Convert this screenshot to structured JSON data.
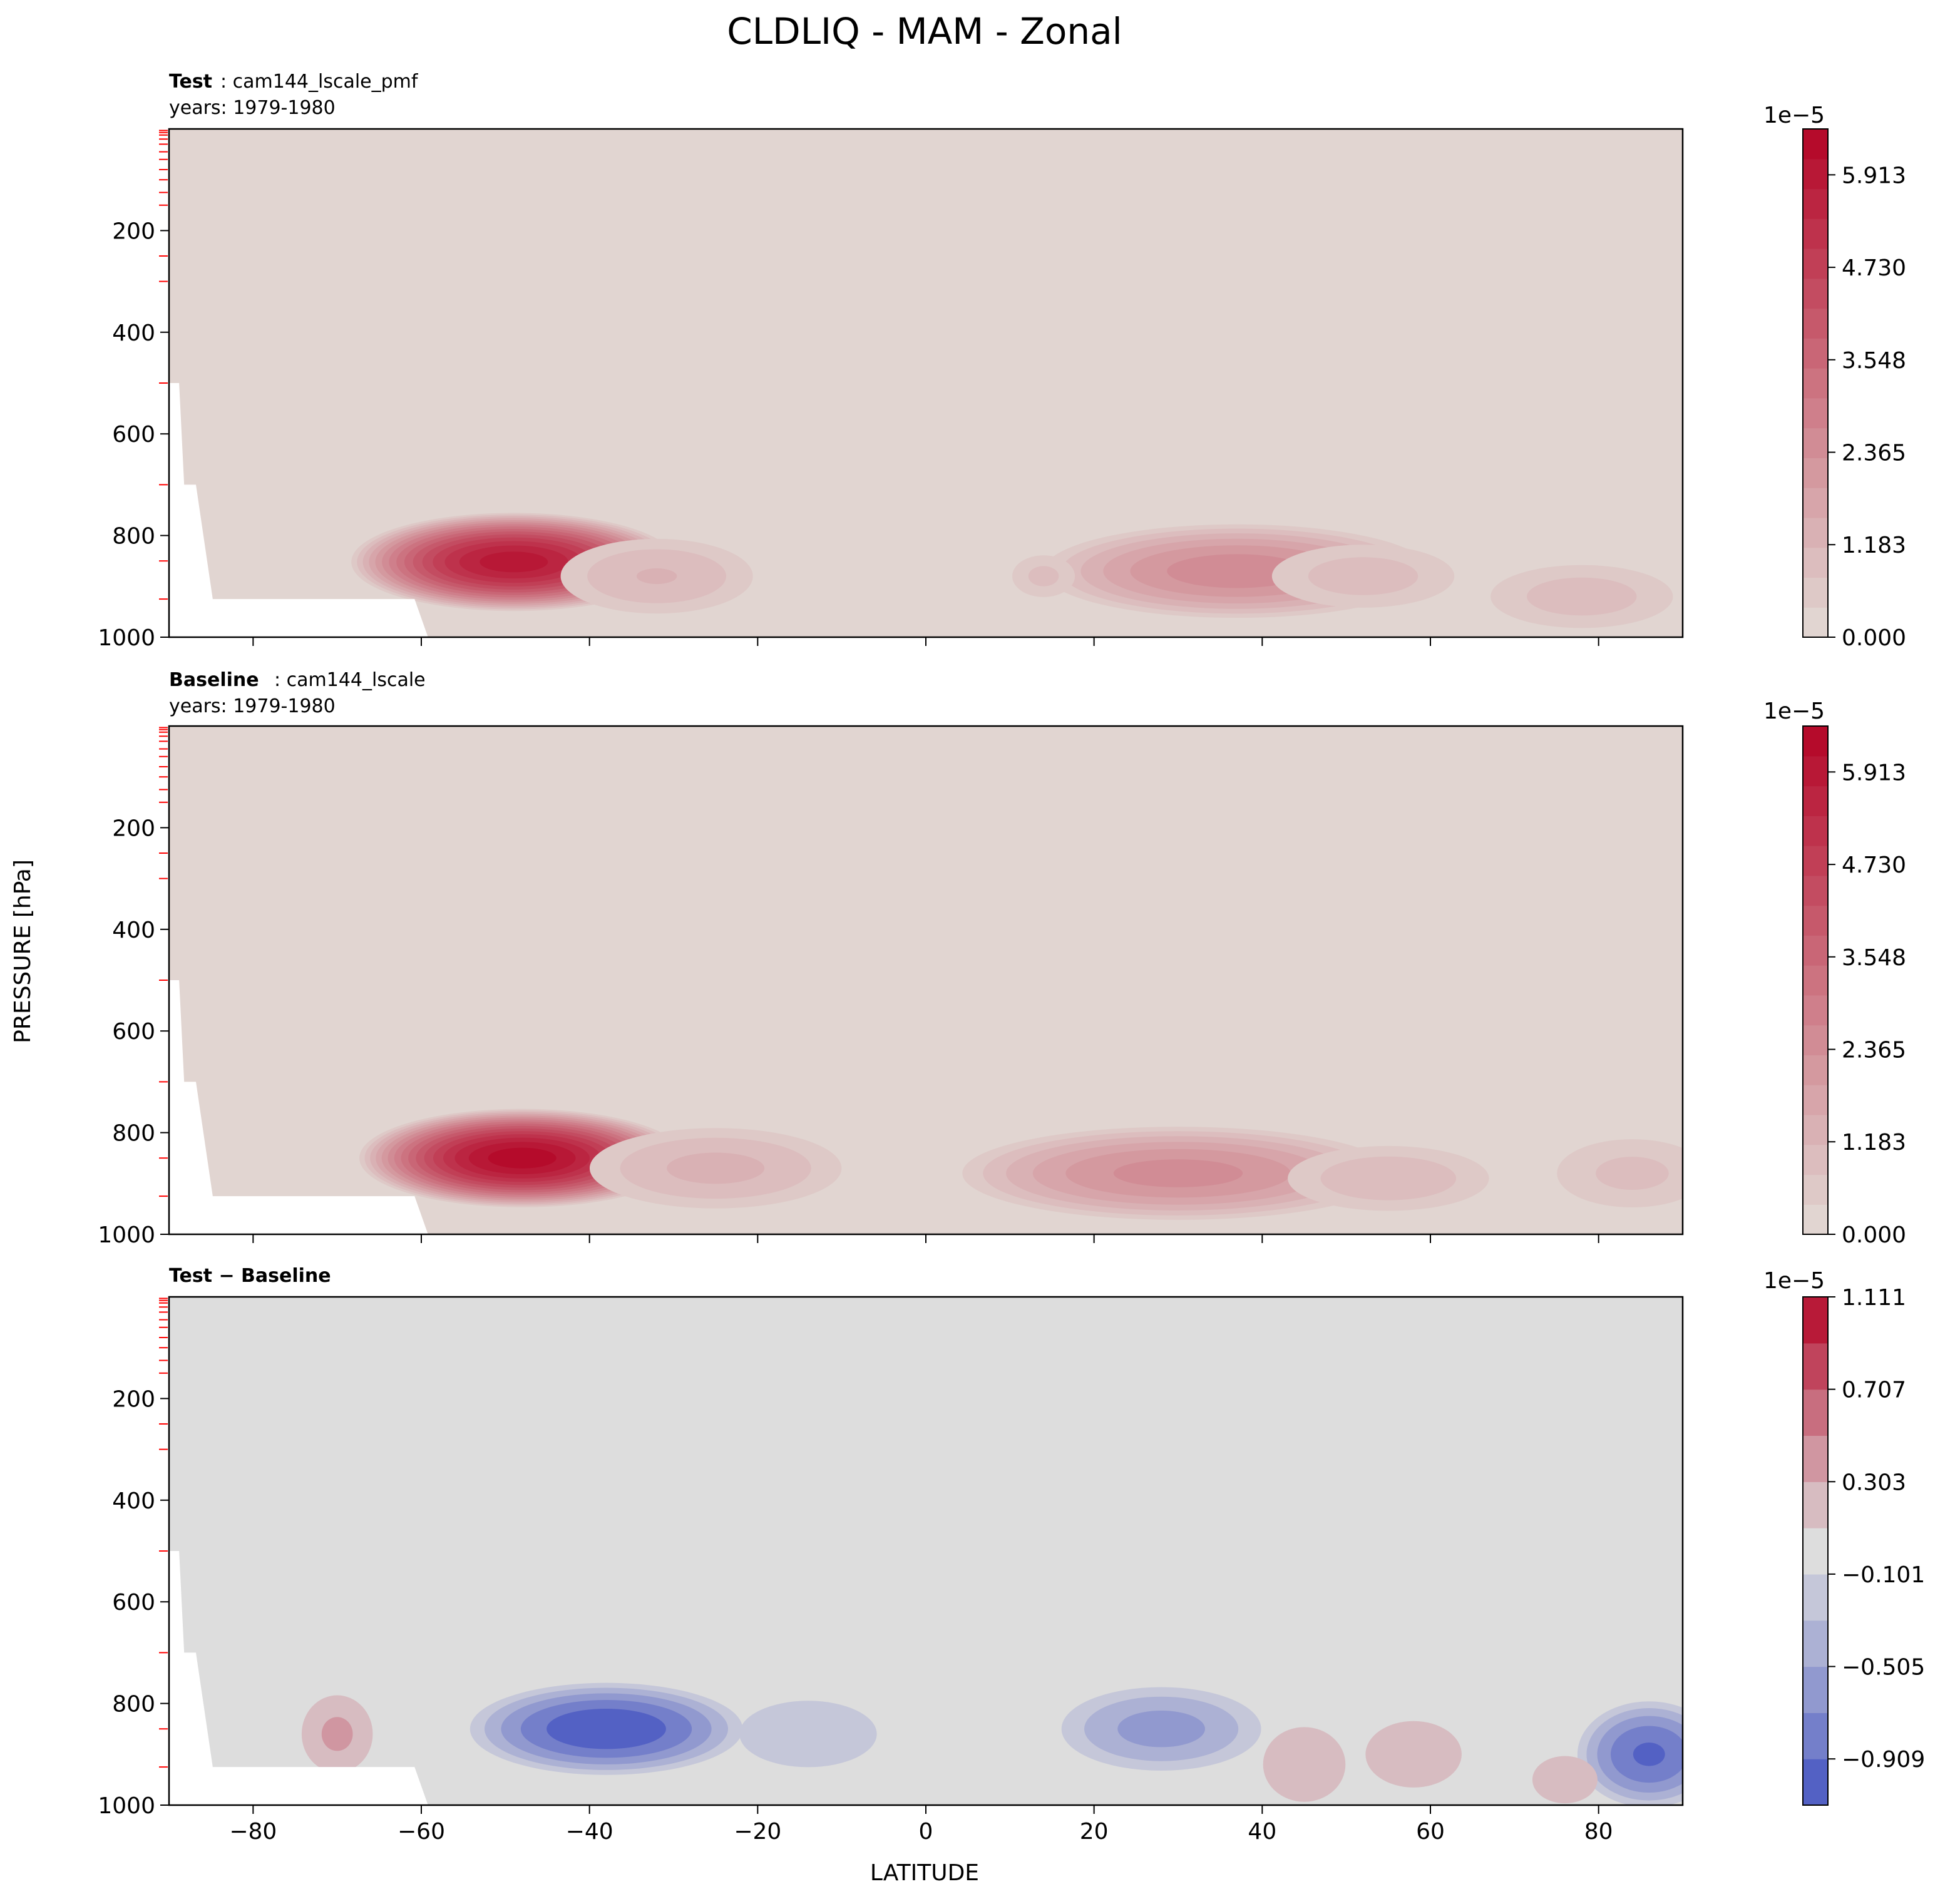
{
  "figure": {
    "title": "CLDLIQ - MAM - Zonal",
    "ylabel": "PRESSURE [hPa]",
    "xlabel": "LATITUDE"
  },
  "chart_data": [
    {
      "type": "heatmap",
      "panel_label": "Test",
      "case_name": ": cam144_lscale_pmf",
      "years": "years: 1979-1980",
      "x_ticks": [
        -80,
        -60,
        -40,
        -20,
        0,
        20,
        40,
        60,
        80
      ],
      "y_ticks": [
        200,
        400,
        600,
        800,
        1000
      ],
      "xlim": [
        -90,
        90
      ],
      "ylim": [
        1000,
        0
      ],
      "colorbar": {
        "exponent": "1e−5",
        "tick_labels": [
          "0.000",
          "1.183",
          "2.365",
          "3.548",
          "4.730",
          "5.913"
        ],
        "tick_values": [
          0.0,
          1.183,
          2.365,
          3.548,
          4.73,
          5.913
        ],
        "levels": 17,
        "range": [
          0,
          6.5
        ],
        "cmap": "coolwarm-upper-half"
      },
      "features": [
        {
          "lat_center": -49,
          "p_center": 852,
          "lat_halfwidth": 20,
          "p_halfheight": 100,
          "peak": 6.0
        },
        {
          "lat_center": -32,
          "p_center": 880,
          "lat_halfwidth": 14,
          "p_halfheight": 90,
          "peak": 1.2
        },
        {
          "lat_center": 37,
          "p_center": 870,
          "lat_halfwidth": 25,
          "p_halfheight": 100,
          "peak": 2.6
        },
        {
          "lat_center": 52,
          "p_center": 880,
          "lat_halfwidth": 14,
          "p_halfheight": 80,
          "peak": 1.0
        },
        {
          "lat_center": 78,
          "p_center": 920,
          "lat_halfwidth": 14,
          "p_halfheight": 80,
          "peak": 1.0
        },
        {
          "lat_center": 14,
          "p_center": 880,
          "lat_halfwidth": 5,
          "p_halfheight": 55,
          "peak": 0.9
        }
      ]
    },
    {
      "type": "heatmap",
      "panel_label": "Baseline",
      "case_name": ": cam144_lscale",
      "years": "years: 1979-1980",
      "x_ticks": [
        -80,
        -60,
        -40,
        -20,
        0,
        20,
        40,
        60,
        80
      ],
      "y_ticks": [
        200,
        400,
        600,
        800,
        1000
      ],
      "xlim": [
        -90,
        90
      ],
      "ylim": [
        1000,
        0
      ],
      "colorbar": {
        "exponent": "1e−5",
        "tick_labels": [
          "0.000",
          "1.183",
          "2.365",
          "3.548",
          "4.730",
          "5.913"
        ],
        "tick_values": [
          0.0,
          1.183,
          2.365,
          3.548,
          4.73,
          5.913
        ],
        "levels": 17,
        "range": [
          0,
          6.5
        ],
        "cmap": "coolwarm-upper-half"
      },
      "features": [
        {
          "lat_center": -48,
          "p_center": 850,
          "lat_halfwidth": 20,
          "p_halfheight": 100,
          "peak": 6.4
        },
        {
          "lat_center": -25,
          "p_center": 870,
          "lat_halfwidth": 18,
          "p_halfheight": 95,
          "peak": 1.3
        },
        {
          "lat_center": 30,
          "p_center": 880,
          "lat_halfwidth": 28,
          "p_halfheight": 100,
          "peak": 2.5
        },
        {
          "lat_center": 55,
          "p_center": 890,
          "lat_halfwidth": 15,
          "p_halfheight": 80,
          "peak": 1.1
        },
        {
          "lat_center": 84,
          "p_center": 880,
          "lat_halfwidth": 12,
          "p_halfheight": 90,
          "peak": 0.9
        }
      ]
    },
    {
      "type": "heatmap",
      "panel_label": "Test − Baseline",
      "x_ticks": [
        -80,
        -60,
        -40,
        -20,
        0,
        20,
        40,
        60,
        80
      ],
      "y_ticks": [
        200,
        400,
        600,
        800,
        1000
      ],
      "xlim": [
        -90,
        90
      ],
      "ylim": [
        1000,
        0
      ],
      "colorbar": {
        "exponent": "1e−5",
        "tick_labels": [
          "−0.909",
          "−0.505",
          "−0.101",
          "0.303",
          "0.707",
          "1.111"
        ],
        "tick_values": [
          -0.909,
          -0.505,
          -0.101,
          0.303,
          0.707,
          1.111
        ],
        "levels": 11,
        "range": [
          -1.111,
          1.111
        ],
        "cmap": "coolwarm-diverging"
      },
      "features": [
        {
          "lat_center": -38,
          "p_center": 850,
          "lat_halfwidth": 17,
          "p_halfheight": 95,
          "peak": -1.1
        },
        {
          "lat_center": -14,
          "p_center": 860,
          "lat_halfwidth": 10,
          "p_halfheight": 80,
          "peak": -0.3
        },
        {
          "lat_center": 28,
          "p_center": 850,
          "lat_halfwidth": 13,
          "p_halfheight": 90,
          "peak": -0.6
        },
        {
          "lat_center": 86,
          "p_center": 900,
          "lat_halfwidth": 9,
          "p_halfheight": 110,
          "peak": -0.95
        },
        {
          "lat_center": -70,
          "p_center": 860,
          "lat_halfwidth": 5,
          "p_halfheight": 90,
          "peak": 0.35
        },
        {
          "lat_center": 45,
          "p_center": 920,
          "lat_halfwidth": 6,
          "p_halfheight": 90,
          "peak": 0.3
        },
        {
          "lat_center": 58,
          "p_center": 900,
          "lat_halfwidth": 7,
          "p_halfheight": 80,
          "peak": 0.3
        },
        {
          "lat_center": 76,
          "p_center": 950,
          "lat_halfwidth": 5,
          "p_halfheight": 60,
          "peak": 0.25
        }
      ]
    }
  ]
}
